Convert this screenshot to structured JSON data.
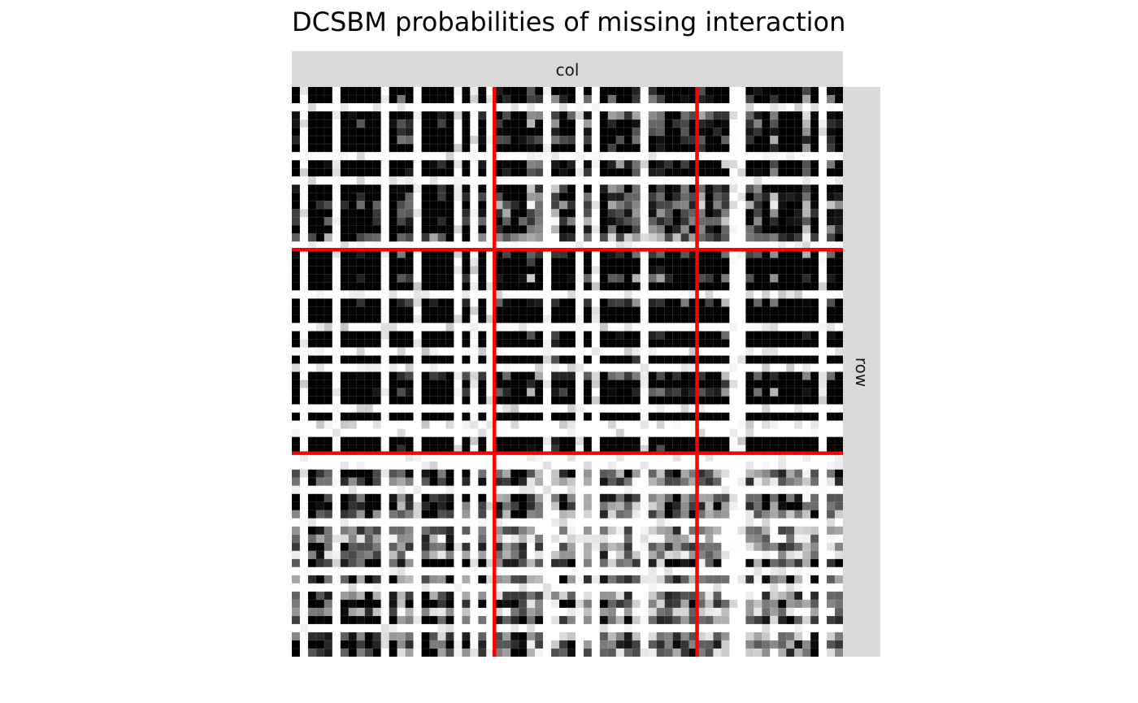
{
  "chart_data": {
    "type": "heatmap",
    "title": "DCSBM probabilities of missing interaction",
    "facet_labels": {
      "col": "col",
      "row": "row"
    },
    "n_rows": 70,
    "n_cols": 68,
    "value_range": [
      0,
      1
    ],
    "colors": {
      "low": "#ffffff",
      "high": "#000000",
      "block_lines": "#ff0000"
    },
    "row_blocks": [
      {
        "id": 1,
        "start": 0,
        "end": 20
      },
      {
        "id": 2,
        "start": 20,
        "end": 45
      },
      {
        "id": 3,
        "start": 45,
        "end": 70
      }
    ],
    "col_blocks": [
      {
        "id": 1,
        "start": 0,
        "end": 25
      },
      {
        "id": 2,
        "start": 25,
        "end": 50
      },
      {
        "id": 3,
        "start": 50,
        "end": 68
      }
    ],
    "row_block_boundaries": [
      20,
      45
    ],
    "col_block_boundaries": [
      25,
      50
    ],
    "block_mean_probability": [
      [
        0.55,
        0.45,
        0.45
      ],
      [
        0.8,
        0.7,
        0.7
      ],
      [
        0.35,
        0.3,
        0.25
      ]
    ]
  }
}
